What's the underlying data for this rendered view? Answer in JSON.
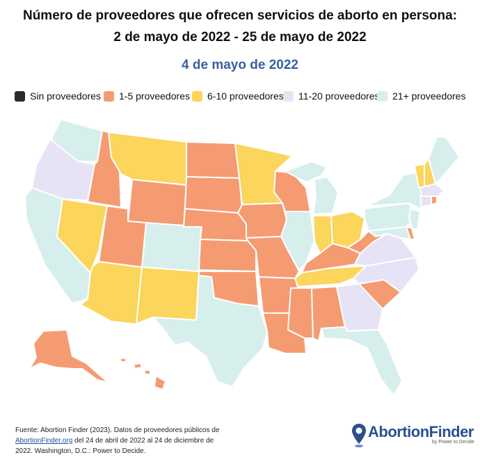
{
  "title_line1": "Número de proveedores que ofrecen servicios de aborto en persona:",
  "title_line2": "2 de mayo de 2022 - 25 de mayo de 2022",
  "date": "4 de mayo de 2022",
  "colors": {
    "title_date": "#3a5fa0",
    "none": "#2b2b2b",
    "c1_5": "#f59b72",
    "c6_10": "#fbd55c",
    "c11_20": "#e6e3f6",
    "c21": "#d7efec",
    "border": "#ffffff"
  },
  "legend": [
    {
      "label": "Sin proveedores",
      "color": "#2b2b2b"
    },
    {
      "label": "1-5 proveedores",
      "color": "#f59b72"
    },
    {
      "label": "6-10 proveedores",
      "color": "#fbd55c"
    },
    {
      "label": "11-20 proveedores",
      "color": "#e6e3f6"
    },
    {
      "label": "21+ proveedores",
      "color": "#d7efec"
    }
  ],
  "footer": {
    "line_prefix": "Fuente: Abortion Finder (2023). Datos de proveedores públicos de",
    "link": "AbortionFinder.org",
    "line_suffix": " del 24 de abril de 2022 al 24 de diciembre de 2022. Washington, D.C.: Power to Decide."
  },
  "logo": {
    "name": "AbortionFinder",
    "tagline": "by Power to Decide"
  }
}
